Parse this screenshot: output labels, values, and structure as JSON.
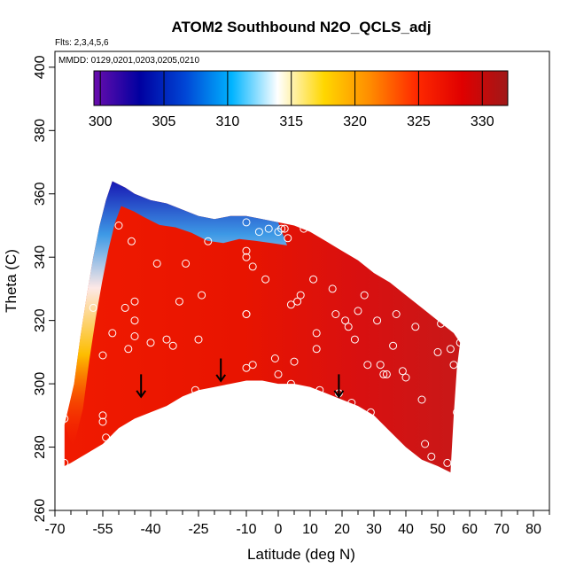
{
  "chart_data": {
    "type": "heatmap",
    "title": "ATOM2 Southbound N2O_QCLS_adj",
    "flights_note": "Flts: 2,3,4,5,6",
    "dates_note": "MMDD: 0129,0201,0203,0205,0210",
    "xlabel": "Latitude (deg N)",
    "ylabel": "Theta (C)",
    "xlim": [
      -70,
      85
    ],
    "ylim": [
      260,
      405
    ],
    "x_ticks": [
      -70,
      -55,
      -40,
      -25,
      -10,
      0,
      10,
      20,
      30,
      40,
      50,
      60,
      70,
      80
    ],
    "x_minor_ticks": [
      -65,
      -60,
      -50,
      -45,
      -35,
      -30,
      -20,
      -15,
      -5,
      5,
      15,
      25,
      35,
      45,
      55,
      65,
      75,
      85
    ],
    "y_ticks": [
      260,
      280,
      300,
      320,
      340,
      360,
      380,
      400
    ],
    "colorbar": {
      "ticks": [
        300,
        305,
        310,
        315,
        320,
        325,
        330
      ],
      "range": [
        299.5,
        332.0
      ],
      "colors": [
        "#6a0dad",
        "#0000a0",
        "#0047d6",
        "#00b4ff",
        "#ffffff",
        "#ffd700",
        "#ff8c00",
        "#ff2a00",
        "#e00000",
        "#a01818"
      ]
    },
    "top_boundary": [
      [
        -67,
        287
      ],
      [
        -64,
        300
      ],
      [
        -62,
        315
      ],
      [
        -60,
        328
      ],
      [
        -58,
        340
      ],
      [
        -56,
        350
      ],
      [
        -54,
        358
      ],
      [
        -52,
        364
      ],
      [
        -48,
        362
      ],
      [
        -45,
        360
      ],
      [
        -40,
        358
      ],
      [
        -35,
        357
      ],
      [
        -30,
        355
      ],
      [
        -25,
        353
      ],
      [
        -20,
        352
      ],
      [
        -15,
        353
      ],
      [
        -10,
        353
      ],
      [
        -5,
        352
      ],
      [
        0,
        351
      ],
      [
        5,
        350
      ],
      [
        10,
        348
      ],
      [
        15,
        345
      ],
      [
        20,
        342
      ],
      [
        25,
        339
      ],
      [
        30,
        335
      ],
      [
        35,
        332
      ],
      [
        40,
        328
      ],
      [
        45,
        324
      ],
      [
        50,
        320
      ],
      [
        55,
        316
      ],
      [
        57,
        313
      ]
    ],
    "bottom_boundary": [
      [
        57,
        313
      ],
      [
        56,
        305
      ],
      [
        55,
        290
      ],
      [
        54,
        272
      ],
      [
        50,
        274
      ],
      [
        45,
        276
      ],
      [
        40,
        280
      ],
      [
        35,
        285
      ],
      [
        30,
        290
      ],
      [
        25,
        293
      ],
      [
        20,
        295
      ],
      [
        15,
        297
      ],
      [
        10,
        299
      ],
      [
        5,
        300
      ],
      [
        0,
        300
      ],
      [
        -5,
        301
      ],
      [
        -10,
        301
      ],
      [
        -15,
        300
      ],
      [
        -20,
        299
      ],
      [
        -25,
        298
      ],
      [
        -30,
        296
      ],
      [
        -35,
        293
      ],
      [
        -40,
        291
      ],
      [
        -45,
        289
      ],
      [
        -50,
        286
      ],
      [
        -55,
        281
      ],
      [
        -60,
        278
      ],
      [
        -65,
        275
      ],
      [
        -67,
        274
      ]
    ],
    "points": [
      [
        -67,
        289
      ],
      [
        -67,
        275
      ],
      [
        -55,
        288
      ],
      [
        -55,
        290
      ],
      [
        -54,
        283
      ],
      [
        -55,
        309
      ],
      [
        -58,
        324
      ],
      [
        -52,
        316
      ],
      [
        -50,
        350
      ],
      [
        -48,
        324
      ],
      [
        -46,
        345
      ],
      [
        -45,
        326
      ],
      [
        -45,
        315
      ],
      [
        -45,
        320
      ],
      [
        -47,
        311
      ],
      [
        -40,
        313
      ],
      [
        -38,
        338
      ],
      [
        -35,
        314
      ],
      [
        -33,
        312
      ],
      [
        -31,
        326
      ],
      [
        -29,
        338
      ],
      [
        -26,
        298
      ],
      [
        -25,
        314
      ],
      [
        -24,
        328
      ],
      [
        -22,
        345
      ],
      [
        -10,
        351
      ],
      [
        -10,
        342
      ],
      [
        -10,
        340
      ],
      [
        -10,
        322
      ],
      [
        -10,
        322
      ],
      [
        -10,
        305
      ],
      [
        -8,
        306
      ],
      [
        -8,
        337
      ],
      [
        -6,
        348
      ],
      [
        -4,
        333
      ],
      [
        -3,
        349
      ],
      [
        -1,
        308
      ],
      [
        0,
        303
      ],
      [
        0,
        298
      ],
      [
        0,
        348
      ],
      [
        1,
        349
      ],
      [
        2,
        349
      ],
      [
        3,
        346
      ],
      [
        4,
        300
      ],
      [
        4,
        325
      ],
      [
        5,
        307
      ],
      [
        6,
        326
      ],
      [
        7,
        328
      ],
      [
        8,
        349
      ],
      [
        11,
        333
      ],
      [
        12,
        311
      ],
      [
        12,
        316
      ],
      [
        13,
        298
      ],
      [
        15,
        294
      ],
      [
        17,
        330
      ],
      [
        18,
        322
      ],
      [
        19,
        297
      ],
      [
        21,
        320
      ],
      [
        22,
        318
      ],
      [
        23,
        294
      ],
      [
        24,
        314
      ],
      [
        25,
        323
      ],
      [
        27,
        328
      ],
      [
        28,
        306
      ],
      [
        29,
        291
      ],
      [
        31,
        320
      ],
      [
        32,
        306
      ],
      [
        33,
        303
      ],
      [
        34,
        303
      ],
      [
        36,
        312
      ],
      [
        37,
        322
      ],
      [
        39,
        304
      ],
      [
        40,
        302
      ],
      [
        43,
        318
      ],
      [
        45,
        295
      ],
      [
        46,
        281
      ],
      [
        50,
        310
      ],
      [
        51,
        319
      ],
      [
        55,
        306
      ],
      [
        54,
        311
      ],
      [
        56,
        291
      ],
      [
        48,
        277
      ],
      [
        53,
        275
      ],
      [
        57,
        313
      ]
    ],
    "arrows": [
      [
        -43,
        297
      ],
      [
        -18,
        302
      ],
      [
        19,
        297
      ]
    ]
  }
}
